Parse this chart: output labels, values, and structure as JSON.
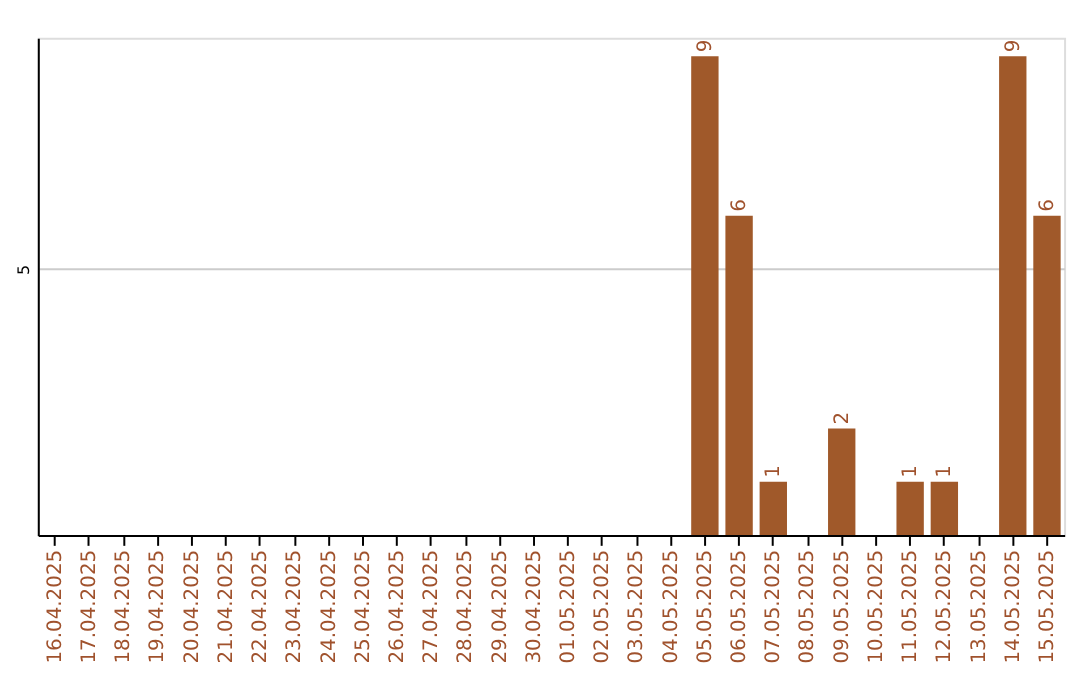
{
  "chart_data": {
    "type": "bar",
    "categories": [
      "16.04.2025",
      "17.04.2025",
      "18.04.2025",
      "19.04.2025",
      "20.04.2025",
      "21.04.2025",
      "22.04.2025",
      "23.04.2025",
      "24.04.2025",
      "25.04.2025",
      "26.04.2025",
      "27.04.2025",
      "28.04.2025",
      "29.04.2025",
      "30.04.2025",
      "01.05.2025",
      "02.05.2025",
      "03.05.2025",
      "04.05.2025",
      "05.05.2025",
      "06.05.2025",
      "07.05.2025",
      "08.05.2025",
      "09.05.2025",
      "10.05.2025",
      "11.05.2025",
      "12.05.2025",
      "13.05.2025",
      "14.05.2025",
      "15.05.2025"
    ],
    "values": [
      null,
      null,
      null,
      null,
      null,
      null,
      null,
      null,
      null,
      null,
      null,
      null,
      null,
      null,
      null,
      null,
      null,
      null,
      null,
      9,
      6,
      1,
      null,
      2,
      null,
      1,
      1,
      null,
      9,
      6
    ],
    "data_labels": true,
    "color": "#a0592a",
    "ylim": [
      0,
      9.35
    ],
    "yticks": [
      5
    ],
    "grid": "y"
  }
}
